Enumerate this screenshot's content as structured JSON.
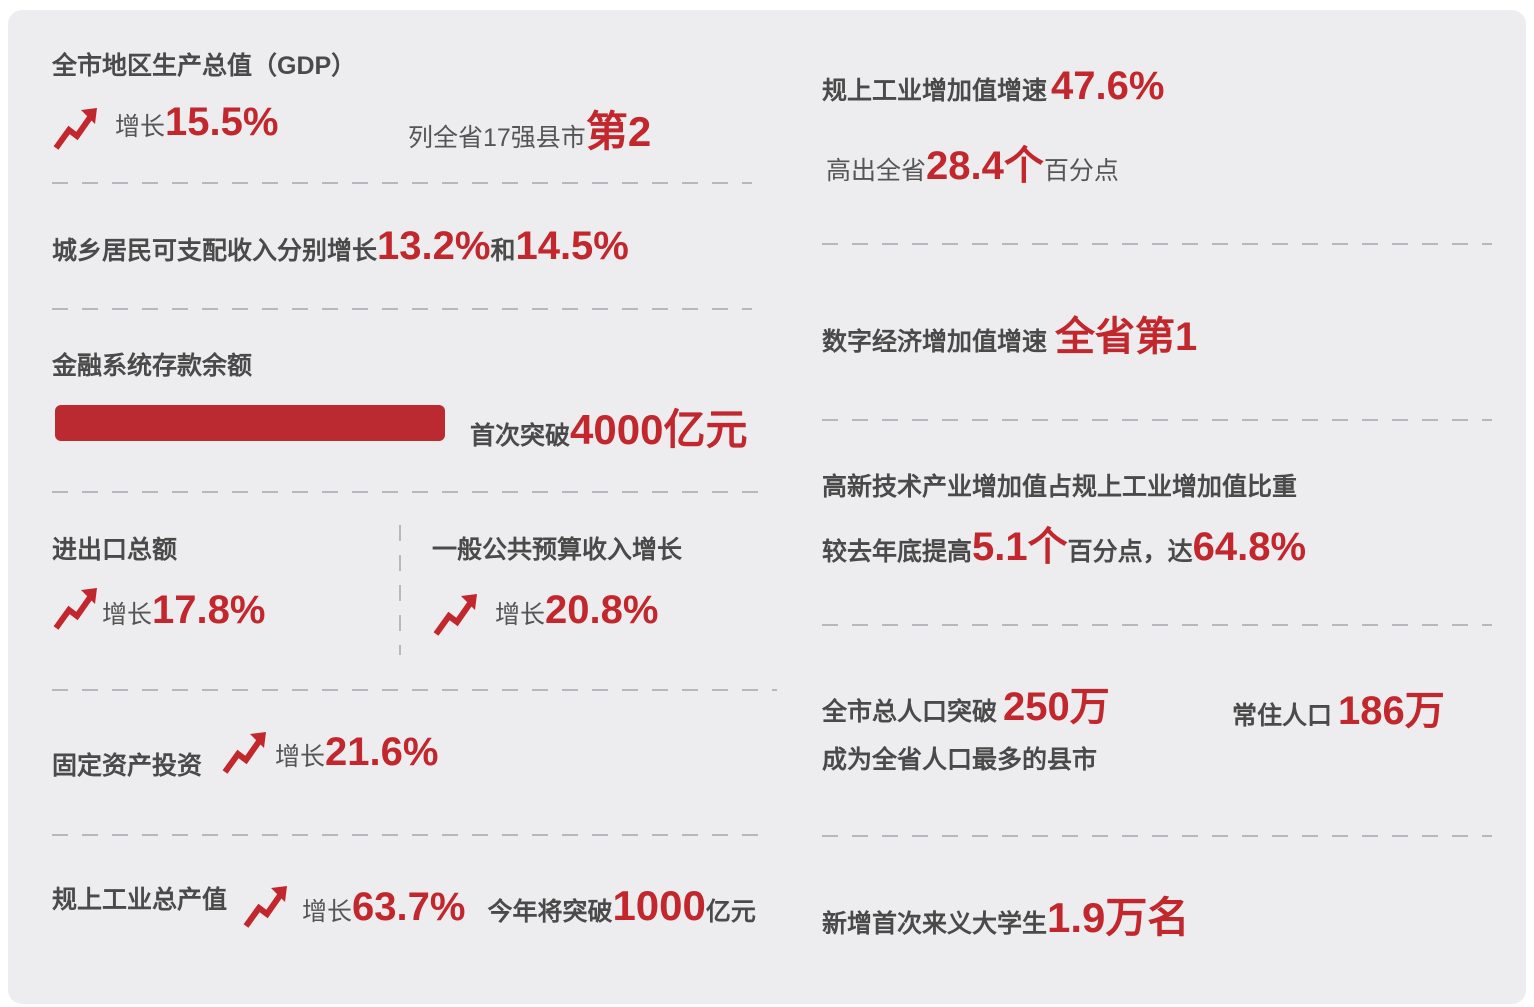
{
  "left": {
    "gdp": {
      "label": "全市地区生产总值（GDP）",
      "growth_label": "增长",
      "growth": "15.5%",
      "rank_label": "列全省17强县市",
      "rank": "第2"
    },
    "income": {
      "label": "城乡居民可支配收入分别增长",
      "urban": "13.2%",
      "conj": "和",
      "rural": "14.5%"
    },
    "deposits": {
      "label": "金融系统存款余额",
      "note": "首次突破",
      "value": "4000亿元"
    },
    "trade": {
      "label": "进出口总额",
      "growth_label": "增长",
      "growth": "17.8%"
    },
    "budget": {
      "label": "一般公共预算收入增长",
      "growth_label": "增长",
      "growth": "20.8%"
    },
    "fixed_assets": {
      "label": "固定资产投资",
      "growth_label": "增长",
      "growth": "21.6%"
    },
    "industry_output": {
      "label": "规上工业总产值",
      "growth_label": "增长",
      "growth": "63.7%",
      "note": "今年将突破",
      "value": "1000",
      "unit": "亿元"
    }
  },
  "right": {
    "industry_added": {
      "label": "规上工业增加值增速",
      "value": "47.6%",
      "sub_label": "高出全省",
      "sub_value": "28.4个",
      "sub_unit": "百分点"
    },
    "digital": {
      "label": "数字经济增加值增速",
      "value": "全省第1"
    },
    "hightech": {
      "label": "高新技术产业增加值占规上工业增加值比重",
      "sub_label": "较去年底提高",
      "sub_value": "5.1个",
      "sub_mid": "百分点，达",
      "share": "64.8%"
    },
    "population": {
      "label": "全市总人口突破",
      "value": "250万",
      "resident_label": "常住人口",
      "resident": "186万",
      "note": "成为全省人口最多的县市"
    },
    "students": {
      "label": "新增首次来义大学生",
      "value": "1.9万名"
    }
  }
}
